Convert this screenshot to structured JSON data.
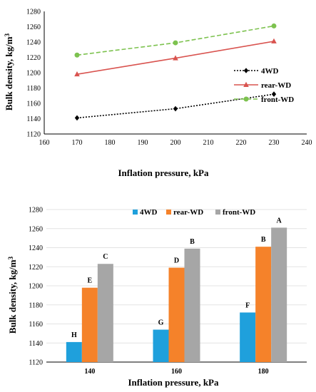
{
  "chart_data": [
    {
      "type": "line",
      "xlabel": "Inflation pressure, kPa",
      "ylabel": "Bulk density, kg/m",
      "ylabel_sup": "3",
      "xlim": [
        160,
        240
      ],
      "ylim": [
        1120,
        1280
      ],
      "xticks": [
        160,
        170,
        180,
        190,
        200,
        210,
        220,
        230,
        240
      ],
      "yticks": [
        1120,
        1140,
        1160,
        1180,
        1200,
        1220,
        1240,
        1260,
        1280
      ],
      "x": [
        170,
        200,
        230
      ],
      "legend_position": "right",
      "series": [
        {
          "name": "4WD",
          "values": [
            1141,
            1153,
            1172
          ],
          "color": "#000000",
          "marker": "diamond",
          "dash": "dotted"
        },
        {
          "name": "rear-WD",
          "values": [
            1198,
            1219,
            1241
          ],
          "color": "#d9534f",
          "marker": "triangle",
          "dash": "solid"
        },
        {
          "name": "front-WD",
          "values": [
            1223,
            1239,
            1261
          ],
          "color": "#7dc24f",
          "marker": "circle",
          "dash": "dashed"
        }
      ]
    },
    {
      "type": "bar",
      "xlabel": "Inflation pressure, kPa",
      "ylabel": "Bulk density, kg/m",
      "ylabel_sup": "3",
      "ylim": [
        1120,
        1280
      ],
      "yticks": [
        1120,
        1140,
        1160,
        1180,
        1200,
        1220,
        1240,
        1260,
        1280
      ],
      "categories": [
        "140",
        "160",
        "180"
      ],
      "legend_position": "top",
      "series": [
        {
          "name": "4WD",
          "values": [
            1141,
            1154,
            1172
          ],
          "color": "#1fa0dc",
          "labels": [
            "H",
            "G",
            "F"
          ]
        },
        {
          "name": "rear-WD",
          "values": [
            1198,
            1219,
            1241
          ],
          "color": "#f5822a",
          "labels": [
            "E",
            "D",
            "B"
          ]
        },
        {
          "name": "front-WD",
          "values": [
            1223,
            1239,
            1261
          ],
          "color": "#a6a6a6",
          "labels": [
            "C",
            "B",
            "A"
          ]
        }
      ]
    }
  ]
}
